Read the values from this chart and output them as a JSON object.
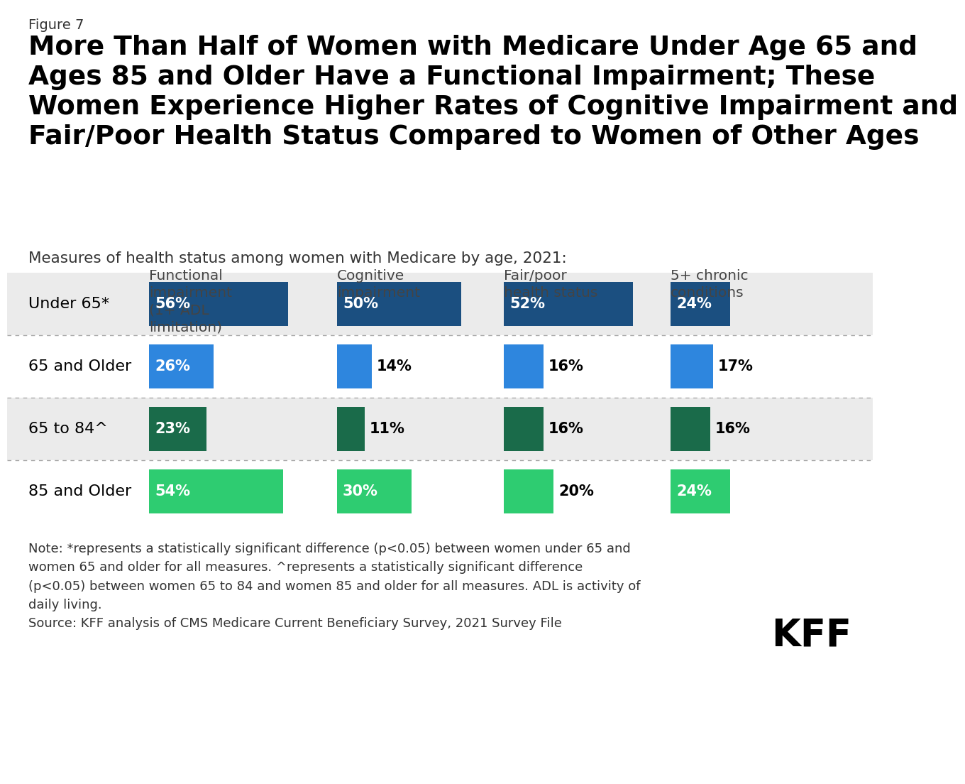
{
  "figure_label": "Figure 7",
  "title": "More Than Half of Women with Medicare Under Age 65 and\nAges 85 and Older Have a Functional Impairment; These\nWomen Experience Higher Rates of Cognitive Impairment and\nFair/Poor Health Status Compared to Women of Other Ages",
  "subtitle": "Measures of health status among women with Medicare by age, 2021:",
  "col_headers": [
    "Functional\nimpairment\n(1+ ADL\nlimitation)",
    "Cognitive\nimpairment",
    "Fair/poor\nhealth status",
    "5+ chronic\nconditions"
  ],
  "row_labels": [
    "Under 65*",
    "65 and Older",
    "65 to 84^",
    "85 and Older"
  ],
  "values": [
    [
      56,
      50,
      52,
      24
    ],
    [
      26,
      14,
      16,
      17
    ],
    [
      23,
      11,
      16,
      16
    ],
    [
      54,
      30,
      20,
      24
    ]
  ],
  "colors": [
    "#1b4f80",
    "#2e86de",
    "#1a6b4a",
    "#2ecc71"
  ],
  "note": "Note: *represents a statistically significant difference (p<0.05) between women under 65 and\nwomen 65 and older for all measures. ^represents a statistically significant difference\n(p<0.05) between women 65 to 84 and women 85 and older for all measures. ADL is activity of\ndaily living.",
  "source": "Source: KFF analysis of CMS Medicare Current Beneficiary Survey, 2021 Survey File",
  "row_bg_colors": [
    "#ebebeb",
    "#ffffff",
    "#ebebeb",
    "#ffffff"
  ],
  "max_val": 60
}
